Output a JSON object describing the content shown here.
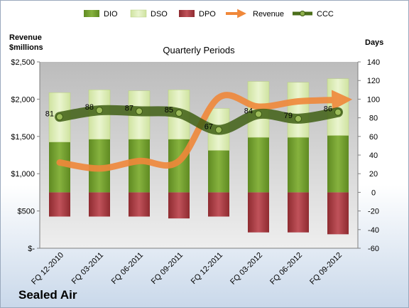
{
  "company": "Sealed Air",
  "chart_data": {
    "type": "bar",
    "title": "Quarterly Periods",
    "ylabel_left": "Revenue\n$millions",
    "ylabel_right": "Days",
    "categories": [
      "FQ 12-2010",
      "FQ 03-2011",
      "FQ 06-2011",
      "FQ 09-2011",
      "FQ 12-2011",
      "FQ 03-2012",
      "FQ 06-2012",
      "FQ 09-2012"
    ],
    "left_axis": {
      "ylim": [
        0,
        2500
      ],
      "ticks": [
        0,
        500,
        1000,
        1500,
        2000,
        2500
      ],
      "tick_labels": [
        "$-",
        "$500",
        "$1,000",
        "$1,500",
        "$2,000",
        "$2,500"
      ]
    },
    "right_axis": {
      "ylim": [
        -60,
        140
      ],
      "ticks": [
        -60,
        -40,
        -20,
        0,
        20,
        40,
        60,
        80,
        100,
        120,
        140
      ],
      "tick_labels": [
        "-60",
        "-40",
        "-20",
        "0",
        "20",
        "40",
        "60",
        "80",
        "100",
        "120",
        "140"
      ]
    },
    "series": [
      {
        "name": "DIO",
        "axis": "right",
        "kind": "stacked-bar",
        "color": "#6f9a2e",
        "values": [
          54,
          57,
          57,
          57,
          45,
          59,
          59,
          61
        ]
      },
      {
        "name": "DSO",
        "axis": "right",
        "kind": "stacked-bar",
        "color": "#d9eab0",
        "values": [
          53,
          53,
          52,
          53,
          45,
          60,
          59,
          61
        ]
      },
      {
        "name": "DPO",
        "axis": "right",
        "kind": "bar-negative",
        "color": "#a63a3f",
        "values": [
          -26,
          -26,
          -26,
          -28,
          -26,
          -43,
          -43,
          -45
        ]
      },
      {
        "name": "Revenue",
        "axis": "left",
        "kind": "line",
        "color": "#f0883a",
        "values": [
          1150,
          1070,
          1170,
          1170,
          2020,
          1900,
          1970,
          1990
        ]
      },
      {
        "name": "CCC",
        "axis": "right",
        "kind": "line",
        "color": "#4b6e1a",
        "values": [
          81,
          88,
          87,
          85,
          67,
          84,
          79,
          86
        ]
      }
    ],
    "ccc_labels": [
      "81",
      "88",
      "87",
      "85",
      "67",
      "84",
      "79",
      "86"
    ],
    "legend_position": "top",
    "grid": false
  }
}
